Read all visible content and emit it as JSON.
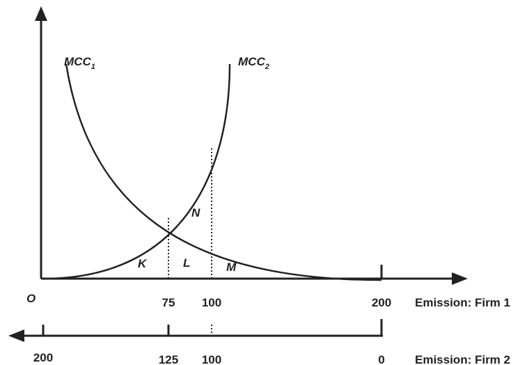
{
  "curves": {
    "mcc1": {
      "base": "MCC",
      "sub": "1"
    },
    "mcc2": {
      "base": "MCC",
      "sub": "2"
    }
  },
  "regions": {
    "k": "K",
    "l": "L",
    "m": "M",
    "n": "N"
  },
  "axis_firm1": {
    "origin": "O",
    "ticks": [
      "75",
      "100",
      "200"
    ],
    "title": "Emission: Firm 1"
  },
  "axis_firm2": {
    "ticks": [
      "200",
      "125",
      "100",
      "0"
    ],
    "title": "Emission: Firm 2"
  },
  "colors": {
    "ink": "#222222",
    "background": "#ffffff"
  }
}
